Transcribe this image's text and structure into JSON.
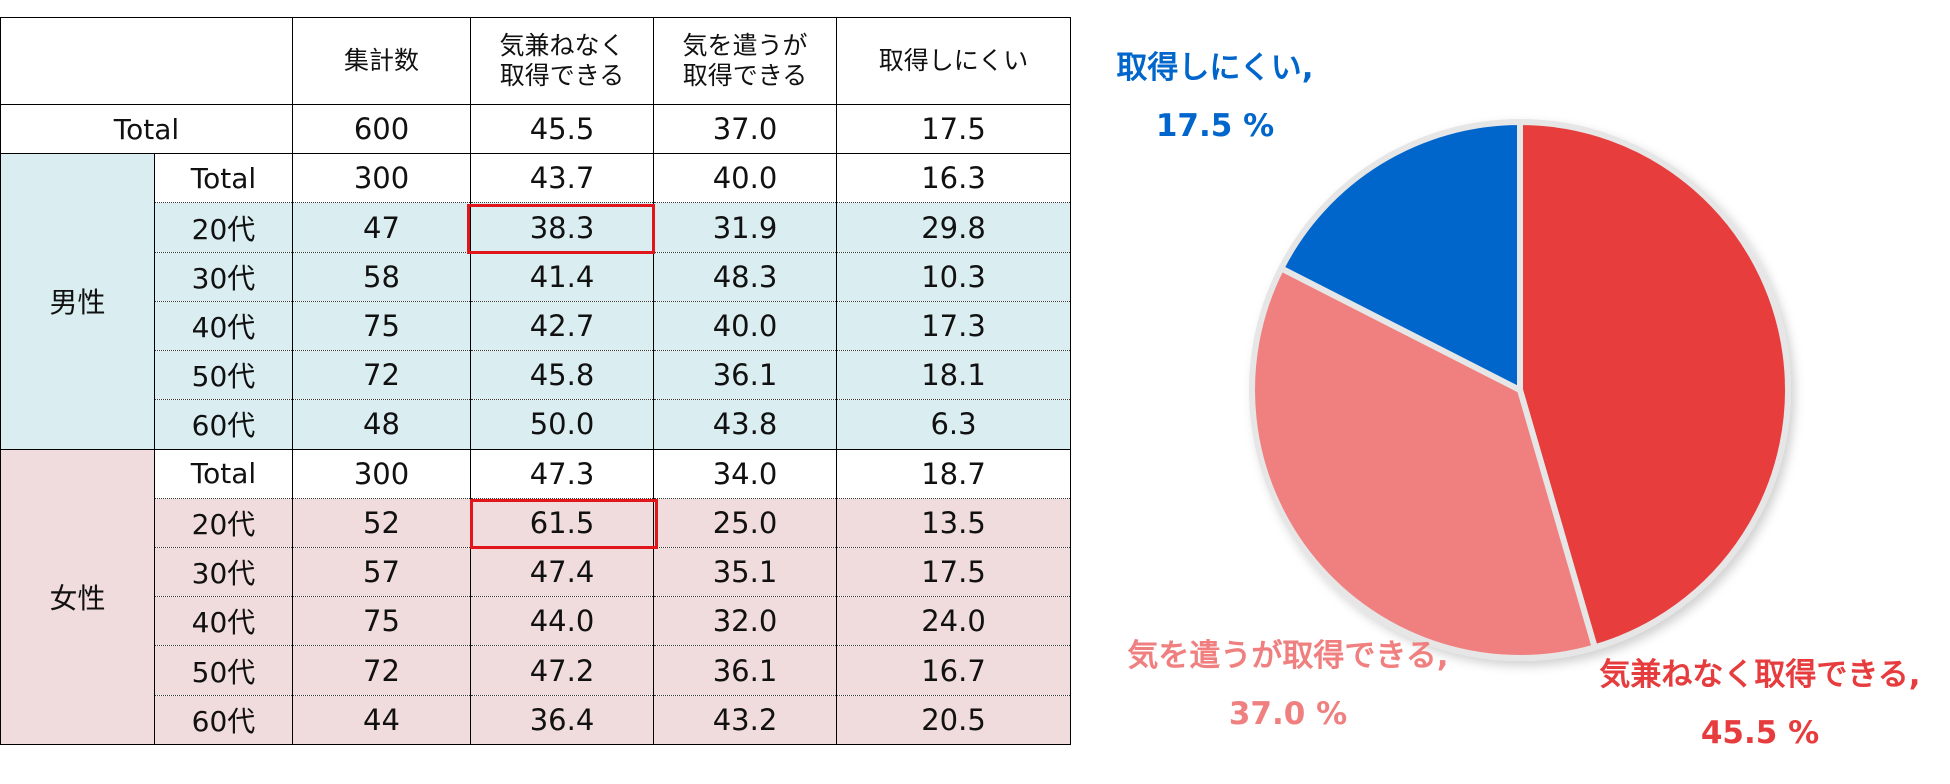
{
  "table": {
    "headers": {
      "blank": "",
      "count": "集計数",
      "col1_line1": "気兼ねなく",
      "col1_line2": "取得できる",
      "col2_line1": "気を遣うが",
      "col2_line2": "取得できる",
      "col3": "取得しにくい"
    },
    "total_row": {
      "label": "Total",
      "count": "600",
      "v1": "45.5",
      "v2": "37.0",
      "v3": "17.5"
    },
    "male": {
      "group": "男性",
      "rows": [
        {
          "label": "Total",
          "count": "300",
          "v1": "43.7",
          "v2": "40.0",
          "v3": "16.3"
        },
        {
          "label": "20代",
          "count": "47",
          "v1": "38.3",
          "v2": "31.9",
          "v3": "29.8"
        },
        {
          "label": "30代",
          "count": "58",
          "v1": "41.4",
          "v2": "48.3",
          "v3": "10.3"
        },
        {
          "label": "40代",
          "count": "75",
          "v1": "42.7",
          "v2": "40.0",
          "v3": "17.3"
        },
        {
          "label": "50代",
          "count": "72",
          "v1": "45.8",
          "v2": "36.1",
          "v3": "18.1"
        },
        {
          "label": "60代",
          "count": "48",
          "v1": "50.0",
          "v2": "43.8",
          "v3": "6.3"
        }
      ]
    },
    "female": {
      "group": "女性",
      "rows": [
        {
          "label": "Total",
          "count": "300",
          "v1": "47.3",
          "v2": "34.0",
          "v3": "18.7"
        },
        {
          "label": "20代",
          "count": "52",
          "v1": "61.5",
          "v2": "25.0",
          "v3": "13.5"
        },
        {
          "label": "30代",
          "count": "57",
          "v1": "47.4",
          "v2": "35.1",
          "v3": "17.5"
        },
        {
          "label": "40代",
          "count": "75",
          "v1": "44.0",
          "v2": "32.0",
          "v3": "24.0"
        },
        {
          "label": "50代",
          "count": "72",
          "v1": "47.2",
          "v2": "36.1",
          "v3": "16.7"
        },
        {
          "label": "60代",
          "count": "44",
          "v1": "36.4",
          "v2": "43.2",
          "v3": "20.5"
        }
      ]
    }
  },
  "chart_data": {
    "type": "pie",
    "title": "",
    "slices": [
      {
        "name": "気兼ねなく取得できる",
        "value": 45.5,
        "color": "#e73c3e",
        "label_name": "気兼ねなく取得できる,",
        "label_value": "45.5 %"
      },
      {
        "name": "気を遣うが取得できる",
        "value": 37.0,
        "color": "#f08080",
        "label_name": "気を遣うが取得できる,",
        "label_value": "37.0 %"
      },
      {
        "name": "取得しにくい",
        "value": 17.5,
        "color": "#0066cc",
        "label_name": "取得しにくい,",
        "label_value": "17.5 %"
      }
    ]
  }
}
